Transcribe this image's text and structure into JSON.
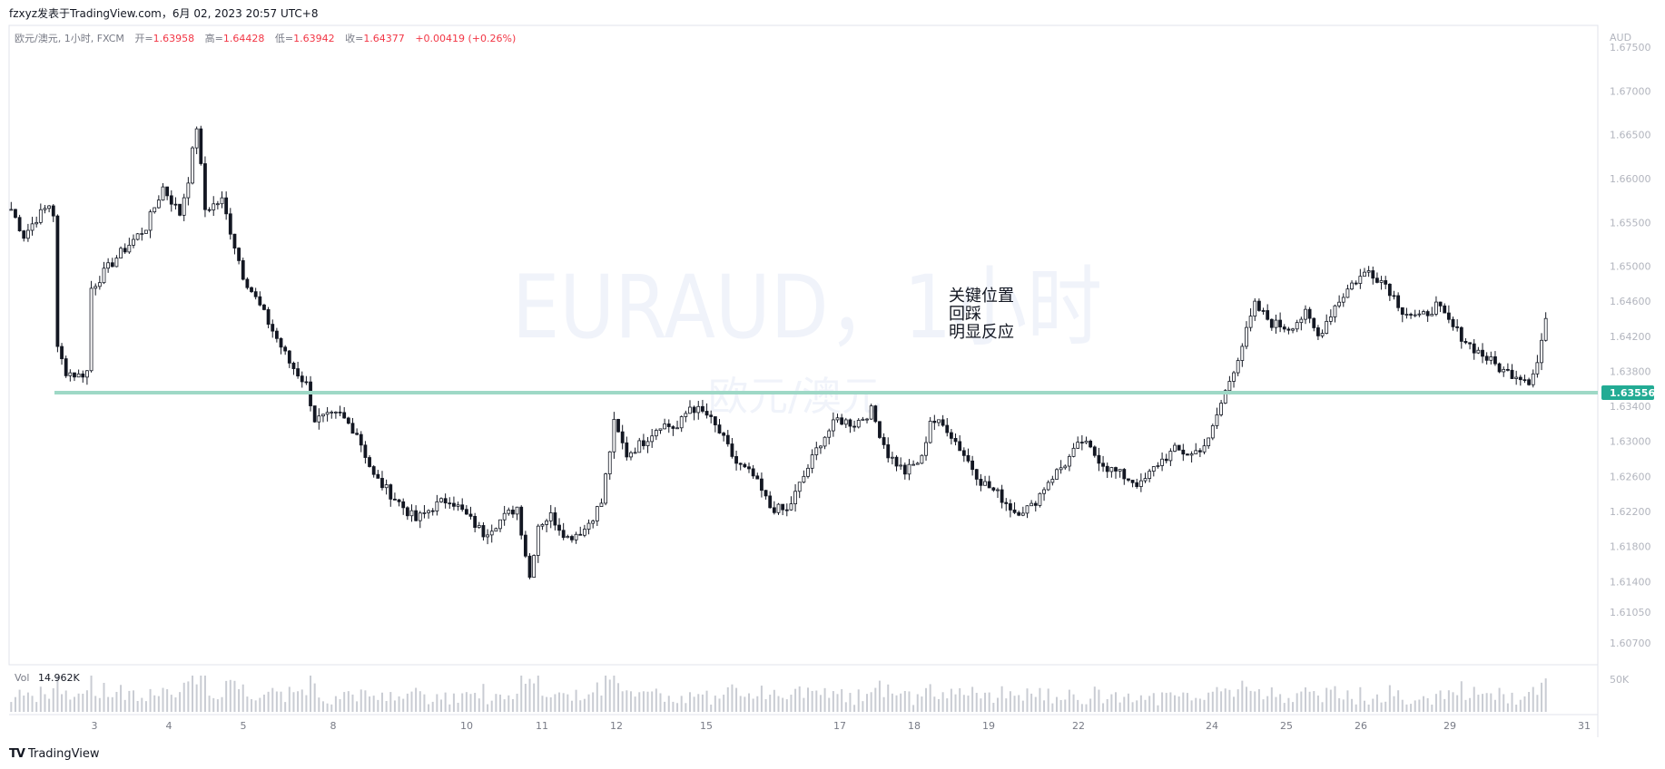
{
  "header": {
    "publisher": "fzxyz发表于TradingView.com，6月 02, 2023 20:57 UTC+8"
  },
  "legend": {
    "symbol_info": "欧元/澳元, 1小时, FXCM",
    "open_label": "开=",
    "open_value": "1.63958",
    "high_label": "高=",
    "high_value": "1.64428",
    "low_label": "低=",
    "low_value": "1.63942",
    "close_label": "收=",
    "close_value": "1.64377",
    "change": "+0.00419 (+0.26%)"
  },
  "watermark": {
    "title": "EURAUD，1小时",
    "subtitle": "欧元/澳元"
  },
  "annotation": [
    "关键位置",
    "回踩",
    "明显反应"
  ],
  "price_axis": {
    "currency": "AUD",
    "ticks": [
      "1.67500",
      "1.67000",
      "1.66500",
      "1.66000",
      "1.65500",
      "1.65000",
      "1.64600",
      "1.64200",
      "1.63800",
      "1.63400",
      "1.63000",
      "1.62600",
      "1.62200",
      "1.61800",
      "1.61400",
      "1.61050",
      "1.60700"
    ],
    "current_price_label": "1.63556"
  },
  "time_axis": {
    "labels": [
      "3",
      "4",
      "5",
      "8",
      "10",
      "11",
      "12",
      "15",
      "17",
      "18",
      "19",
      "22",
      "24",
      "25",
      "26",
      "29",
      "31"
    ]
  },
  "volume": {
    "label": "Vol",
    "value": "14.962K",
    "axis_label": "50K"
  },
  "footer": {
    "brand": "TradingView"
  },
  "colors": {
    "up": "#26a69a",
    "candle": "#131722",
    "support_line": "#9ed8c6",
    "price_label_bg": "#22ab94",
    "legend_value": "#f23645",
    "axis_text": "#b2b5be"
  },
  "chart_data": {
    "type": "candlestick",
    "title": "EURAUD，1小时",
    "subtitle": "欧元/澳元",
    "ylabel": "AUD",
    "ylim": [
      1.6045,
      1.6775
    ],
    "horizontal_line": 1.63556,
    "x_tick_labels": [
      "3",
      "4",
      "5",
      "8",
      "10",
      "11",
      "12",
      "15",
      "17",
      "18",
      "19",
      "22",
      "24",
      "25",
      "26",
      "29",
      "31"
    ],
    "price_path": [
      [
        0,
        1.6565
      ],
      [
        3,
        1.6535
      ],
      [
        6,
        1.6555
      ],
      [
        9,
        1.657
      ],
      [
        10,
        1.656
      ],
      [
        11,
        1.6405
      ],
      [
        13,
        1.638
      ],
      [
        16,
        1.6375
      ],
      [
        18,
        1.638
      ],
      [
        19,
        1.6475
      ],
      [
        25,
        1.651
      ],
      [
        32,
        1.6545
      ],
      [
        36,
        1.659
      ],
      [
        40,
        1.656
      ],
      [
        42,
        1.66
      ],
      [
        44,
        1.666
      ],
      [
        46,
        1.6565
      ],
      [
        50,
        1.6575
      ],
      [
        55,
        1.649
      ],
      [
        60,
        1.6445
      ],
      [
        66,
        1.639
      ],
      [
        70,
        1.6365
      ],
      [
        72,
        1.6325
      ],
      [
        78,
        1.633
      ],
      [
        82,
        1.631
      ],
      [
        86,
        1.626
      ],
      [
        92,
        1.623
      ],
      [
        96,
        1.621
      ],
      [
        100,
        1.6225
      ],
      [
        104,
        1.6235
      ],
      [
        108,
        1.6215
      ],
      [
        112,
        1.6195
      ],
      [
        116,
        1.621
      ],
      [
        120,
        1.6225
      ],
      [
        123,
        1.6145
      ],
      [
        125,
        1.6205
      ],
      [
        128,
        1.6215
      ],
      [
        132,
        1.619
      ],
      [
        136,
        1.62
      ],
      [
        140,
        1.623
      ],
      [
        143,
        1.632
      ],
      [
        146,
        1.6285
      ],
      [
        150,
        1.63
      ],
      [
        154,
        1.632
      ],
      [
        158,
        1.6315
      ],
      [
        161,
        1.634
      ],
      [
        165,
        1.633
      ],
      [
        168,
        1.631
      ],
      [
        172,
        1.6275
      ],
      [
        176,
        1.626
      ],
      [
        180,
        1.6225
      ],
      [
        184,
        1.622
      ],
      [
        188,
        1.626
      ],
      [
        192,
        1.63
      ],
      [
        196,
        1.6325
      ],
      [
        200,
        1.632
      ],
      [
        204,
        1.6335
      ],
      [
        206,
        1.631
      ],
      [
        208,
        1.6285
      ],
      [
        212,
        1.6265
      ],
      [
        216,
        1.628
      ],
      [
        218,
        1.6325
      ],
      [
        222,
        1.6315
      ],
      [
        226,
        1.6285
      ],
      [
        230,
        1.6255
      ],
      [
        234,
        1.624
      ],
      [
        238,
        1.622
      ],
      [
        242,
        1.6225
      ],
      [
        246,
        1.6255
      ],
      [
        250,
        1.6275
      ],
      [
        254,
        1.63
      ],
      [
        256,
        1.629
      ],
      [
        260,
        1.627
      ],
      [
        264,
        1.626
      ],
      [
        268,
        1.625
      ],
      [
        272,
        1.6275
      ],
      [
        276,
        1.629
      ],
      [
        280,
        1.6285
      ],
      [
        284,
        1.63
      ],
      [
        286,
        1.633
      ],
      [
        289,
        1.637
      ],
      [
        292,
        1.641
      ],
      [
        295,
        1.6455
      ],
      [
        299,
        1.6435
      ],
      [
        303,
        1.643
      ],
      [
        307,
        1.6445
      ],
      [
        310,
        1.642
      ],
      [
        314,
        1.6455
      ],
      [
        318,
        1.648
      ],
      [
        322,
        1.6495
      ],
      [
        326,
        1.648
      ],
      [
        330,
        1.645
      ],
      [
        334,
        1.644
      ],
      [
        338,
        1.6455
      ],
      [
        342,
        1.643
      ],
      [
        346,
        1.641
      ],
      [
        350,
        1.6395
      ],
      [
        354,
        1.638
      ],
      [
        358,
        1.6375
      ],
      [
        360,
        1.637
      ],
      [
        362,
        1.639
      ],
      [
        364,
        1.644
      ]
    ],
    "volume_axis_max": "50K"
  }
}
